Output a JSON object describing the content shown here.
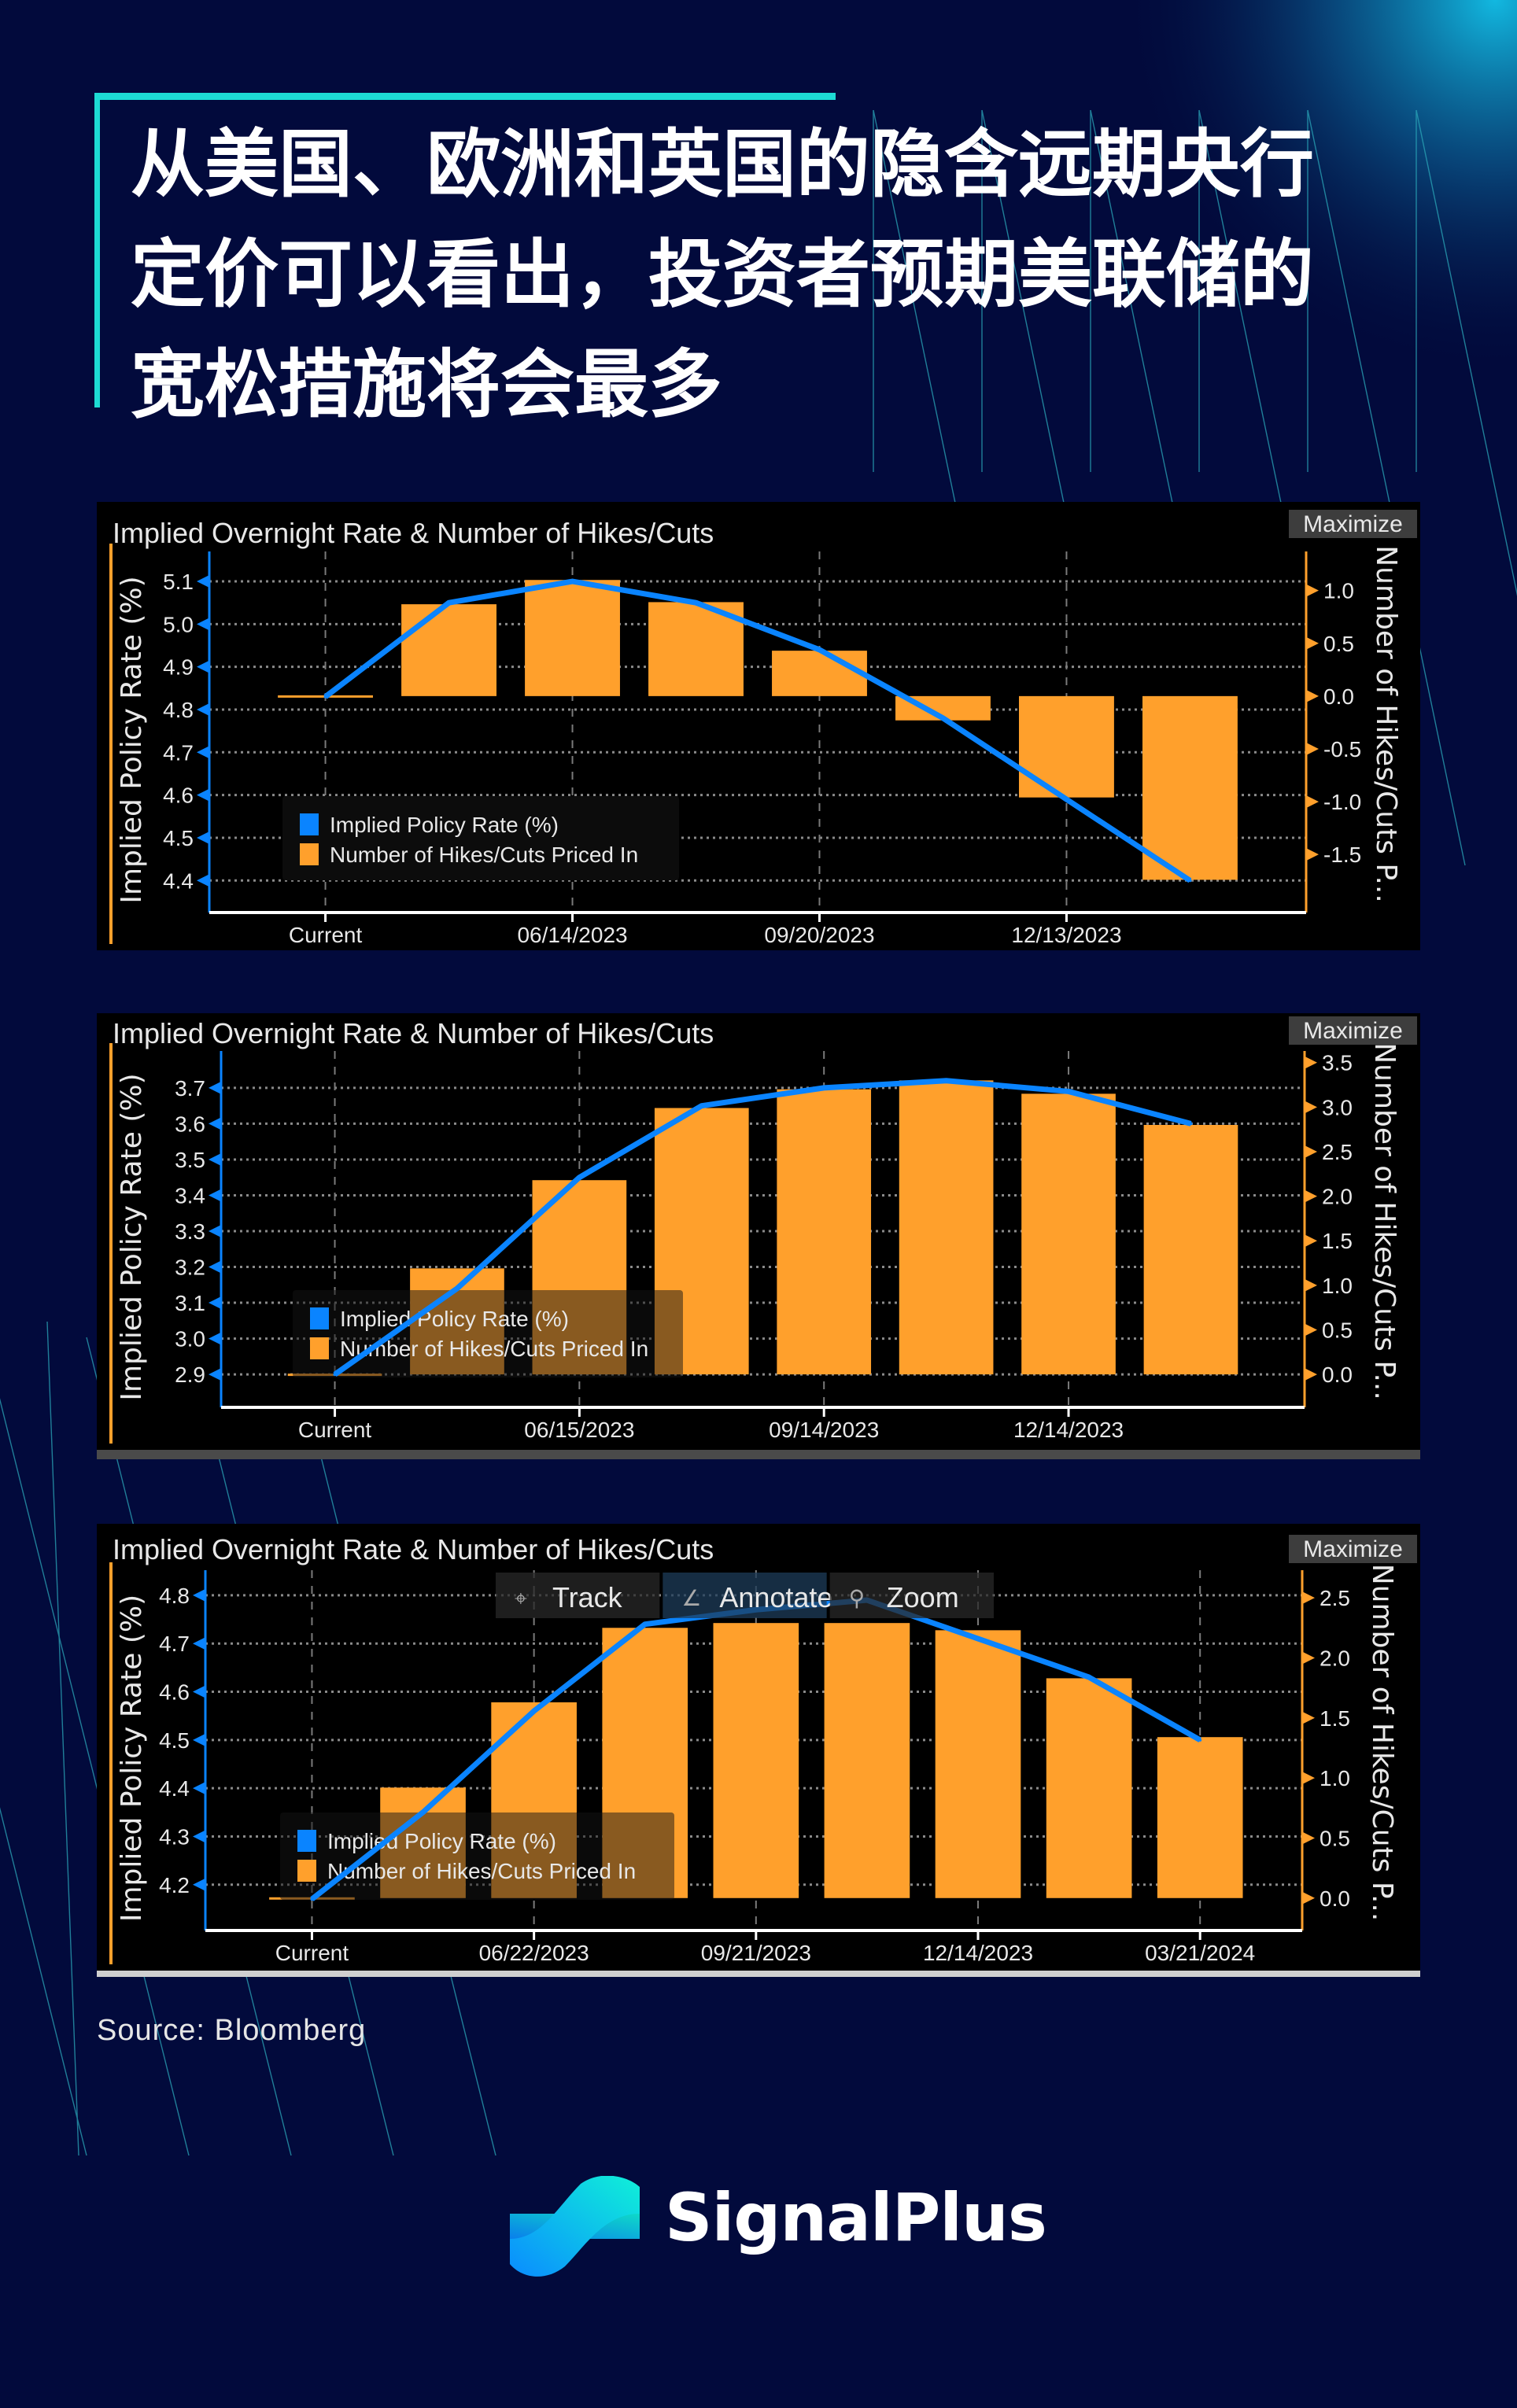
{
  "headline": {
    "lines": [
      "从美国、欧洲和英国的隐含远期央行",
      "定价可以看出，投资者预期美联储的",
      "宽松措施将会最多"
    ]
  },
  "colors": {
    "background": "#020a3c",
    "accent": "#1ddbd4",
    "bar": "#ffa02c",
    "line": "#0a84ff",
    "panel": "#000000"
  },
  "source": "Source:  Bloomberg",
  "brand": "SignalPlus",
  "chart_data": [
    {
      "type": "bar+line",
      "title": "Implied Overnight Rate & Number of Hikes/Cuts",
      "maximize_label": "Maximize",
      "ylabel": "Implied Policy Rate (%)",
      "y2label": "Number of Hikes/Cuts P...",
      "legend": [
        "Implied Policy Rate (%)",
        "Number of Hikes/Cuts Priced In"
      ],
      "legend_placement": "bottom-left",
      "xlim": [
        -0.94,
        7.94
      ],
      "ylim": [
        4.325,
        5.17
      ],
      "y2lim": [
        -2.05,
        1.37
      ],
      "yticks": [
        "5.1",
        "5.0",
        "4.9",
        "4.8",
        "4.7",
        "4.6",
        "4.5",
        "4.4"
      ],
      "y2ticks": [
        "1.0",
        "0.5",
        "0.0",
        "-0.5",
        "-1.0",
        "-1.5"
      ],
      "xticks": [
        {
          "i": 0,
          "label": "Current"
        },
        {
          "i": 2,
          "label": "06/14/2023"
        },
        {
          "i": 4,
          "label": "09/20/2023"
        },
        {
          "i": 6,
          "label": "12/13/2023"
        }
      ],
      "rate": [
        4.83,
        5.05,
        5.1,
        5.05,
        4.94,
        4.78,
        4.59,
        4.4
      ],
      "hikes_cuts": [
        0.0,
        0.87,
        1.1,
        0.89,
        0.43,
        -0.23,
        -0.96,
        -1.74
      ]
    },
    {
      "type": "bar+line",
      "title": "Implied Overnight Rate & Number of Hikes/Cuts",
      "maximize_label": "Maximize",
      "ylabel": "Implied Policy Rate (%)",
      "y2label": "Number of Hikes/Cuts P...",
      "legend": [
        "Implied Policy Rate (%)",
        "Number of Hikes/Cuts Priced In"
      ],
      "legend_placement": "bottom-left",
      "xlim": [
        -0.93,
        7.93
      ],
      "ylim": [
        2.808,
        3.803
      ],
      "y2lim": [
        -0.37,
        3.63
      ],
      "yticks": [
        "3.7",
        "3.6",
        "3.5",
        "3.4",
        "3.3",
        "3.2",
        "3.1",
        "3.0",
        "2.9"
      ],
      "y2ticks": [
        "3.5",
        "3.0",
        "2.5",
        "2.0",
        "1.5",
        "1.0",
        "0.5",
        "0.0"
      ],
      "xticks": [
        {
          "i": 0,
          "label": "Current"
        },
        {
          "i": 2,
          "label": "06/15/2023"
        },
        {
          "i": 4,
          "label": "09/14/2023"
        },
        {
          "i": 6,
          "label": "12/14/2023"
        }
      ],
      "rate": [
        2.9,
        3.14,
        3.45,
        3.65,
        3.7,
        3.72,
        3.69,
        3.6
      ],
      "hikes_cuts": [
        0.0,
        1.19,
        2.18,
        2.99,
        3.2,
        3.3,
        3.15,
        2.8
      ]
    },
    {
      "type": "bar+line",
      "title": "Implied Overnight Rate & Number of Hikes/Cuts",
      "maximize_label": "Maximize",
      "ylabel": "Implied Policy Rate (%)",
      "y2label": "Number of Hikes/Cuts P...",
      "legend": [
        "Implied Policy Rate (%)",
        "Number of Hikes/Cuts Priced In"
      ],
      "legend_placement": "bottom-left",
      "toolbar": [
        "Track",
        "Annotate",
        "Zoom"
      ],
      "xlim": [
        -0.96,
        8.92
      ],
      "ylim": [
        4.105,
        4.852
      ],
      "y2lim": [
        -0.27,
        2.73
      ],
      "yticks": [
        "4.8",
        "4.7",
        "4.6",
        "4.5",
        "4.4",
        "4.3",
        "4.2"
      ],
      "y2ticks": [
        "2.5",
        "2.0",
        "1.5",
        "1.0",
        "0.5",
        "0.0"
      ],
      "xticks": [
        {
          "i": 0,
          "label": "Current"
        },
        {
          "i": 2,
          "label": "06/22/2023"
        },
        {
          "i": 4,
          "label": "09/21/2023"
        },
        {
          "i": 6,
          "label": "12/14/2023"
        },
        {
          "i": 8,
          "label": "03/21/2024"
        }
      ],
      "rate": [
        4.17,
        4.35,
        4.56,
        4.74,
        4.77,
        4.79,
        4.71,
        4.63,
        4.5
      ],
      "hikes_cuts": [
        0.0,
        0.92,
        1.63,
        2.25,
        2.29,
        2.29,
        2.23,
        1.83,
        1.34
      ]
    }
  ]
}
